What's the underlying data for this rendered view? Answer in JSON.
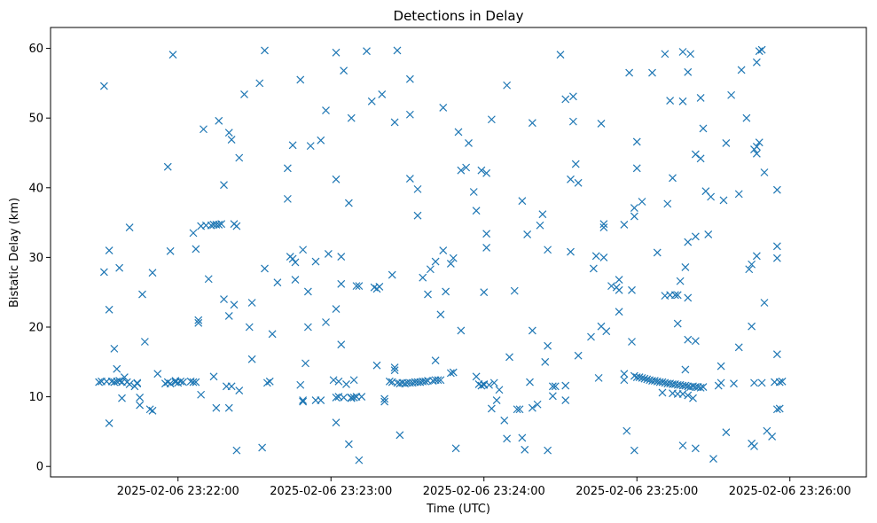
{
  "chart_data": {
    "type": "scatter",
    "title": "Detections in Delay",
    "xlabel": "Time (UTC)",
    "ylabel": "Bistatic Delay (km)",
    "marker": "x",
    "color": "#1f77b4",
    "xlim": [
      "2025-02-06 23:21:10",
      "2025-02-06 23:26:30"
    ],
    "ylim": [
      -1.5,
      63
    ],
    "x_ticks": [
      "2025-02-06 23:22:00",
      "2025-02-06 23:23:00",
      "2025-02-06 23:24:00",
      "2025-02-06 23:25:00",
      "2025-02-06 23:26:00"
    ],
    "y_ticks": [
      0,
      10,
      20,
      30,
      40,
      50,
      60
    ],
    "grid": false,
    "legend": false,
    "points": [
      [
        "23:21:29",
        12.1
      ],
      [
        "23:21:30",
        12.2
      ],
      [
        "23:21:31",
        54.6
      ],
      [
        "23:21:31",
        27.9
      ],
      [
        "23:21:32",
        12.2
      ],
      [
        "23:21:33",
        22.5
      ],
      [
        "23:21:33",
        31.0
      ],
      [
        "23:21:33",
        6.2
      ],
      [
        "23:21:34",
        12.2
      ],
      [
        "23:21:35",
        12.1
      ],
      [
        "23:21:35",
        16.9
      ],
      [
        "23:21:36",
        14.0
      ],
      [
        "23:21:36",
        12.2
      ],
      [
        "23:21:37",
        28.5
      ],
      [
        "23:21:37",
        12.3
      ],
      [
        "23:21:38",
        12.1
      ],
      [
        "23:21:38",
        9.8
      ],
      [
        "23:21:39",
        12.8
      ],
      [
        "23:21:40",
        12.1
      ],
      [
        "23:21:41",
        34.3
      ],
      [
        "23:21:41",
        11.8
      ],
      [
        "23:21:43",
        11.5
      ],
      [
        "23:21:44",
        12.0
      ],
      [
        "23:21:44",
        11.9
      ],
      [
        "23:21:45",
        9.9
      ],
      [
        "23:21:45",
        8.8
      ],
      [
        "23:21:46",
        24.7
      ],
      [
        "23:21:47",
        17.9
      ],
      [
        "23:21:49",
        8.2
      ],
      [
        "23:21:50",
        27.8
      ],
      [
        "23:21:50",
        8.0
      ],
      [
        "23:21:52",
        13.3
      ],
      [
        "23:21:55",
        11.9
      ],
      [
        "23:21:56",
        43.0
      ],
      [
        "23:21:56",
        12.1
      ],
      [
        "23:21:57",
        30.9
      ],
      [
        "23:21:57",
        11.9
      ],
      [
        "23:21:58",
        59.1
      ],
      [
        "23:21:59",
        12.1
      ],
      [
        "23:21:59",
        12.3
      ],
      [
        "23:22:00",
        12.0
      ],
      [
        "23:22:01",
        12.2
      ],
      [
        "23:22:02",
        12.1
      ],
      [
        "23:22:05",
        12.2
      ],
      [
        "23:22:06",
        12.1
      ],
      [
        "23:22:06",
        33.5
      ],
      [
        "23:22:07",
        31.2
      ],
      [
        "23:22:07",
        12.1
      ],
      [
        "23:22:08",
        21.0
      ],
      [
        "23:22:08",
        20.6
      ],
      [
        "23:22:09",
        34.5
      ],
      [
        "23:22:09",
        10.3
      ],
      [
        "23:22:10",
        48.4
      ],
      [
        "23:22:11",
        34.6
      ],
      [
        "23:22:12",
        26.9
      ],
      [
        "23:22:13",
        34.6
      ],
      [
        "23:22:14",
        34.7
      ],
      [
        "23:22:14",
        12.9
      ],
      [
        "23:22:15",
        34.7
      ],
      [
        "23:22:15",
        8.4
      ],
      [
        "23:22:16",
        34.7
      ],
      [
        "23:22:16",
        49.6
      ],
      [
        "23:22:17",
        34.8
      ],
      [
        "23:22:18",
        40.4
      ],
      [
        "23:22:18",
        24.0
      ],
      [
        "23:22:19",
        11.5
      ],
      [
        "23:22:20",
        21.6
      ],
      [
        "23:22:20",
        47.9
      ],
      [
        "23:22:20",
        8.4
      ],
      [
        "23:22:21",
        46.9
      ],
      [
        "23:22:21",
        11.5
      ],
      [
        "23:22:22",
        23.2
      ],
      [
        "23:22:22",
        34.8
      ],
      [
        "23:22:23",
        34.5
      ],
      [
        "23:22:23",
        2.3
      ],
      [
        "23:22:24",
        44.3
      ],
      [
        "23:22:24",
        10.9
      ],
      [
        "23:22:26",
        53.4
      ],
      [
        "23:22:28",
        20.0
      ],
      [
        "23:22:29",
        23.5
      ],
      [
        "23:22:29",
        15.4
      ],
      [
        "23:22:32",
        55.0
      ],
      [
        "23:22:33",
        2.7
      ],
      [
        "23:22:34",
        28.4
      ],
      [
        "23:22:34",
        59.7
      ],
      [
        "23:22:35",
        12.0
      ],
      [
        "23:22:36",
        12.2
      ],
      [
        "23:22:37",
        19.0
      ],
      [
        "23:22:39",
        26.4
      ],
      [
        "23:22:43",
        42.8
      ],
      [
        "23:22:43",
        38.4
      ],
      [
        "23:22:44",
        30.1
      ],
      [
        "23:22:45",
        46.1
      ],
      [
        "23:22:45",
        29.8
      ],
      [
        "23:22:46",
        29.3
      ],
      [
        "23:22:46",
        26.8
      ],
      [
        "23:22:48",
        11.7
      ],
      [
        "23:22:48",
        55.5
      ],
      [
        "23:22:49",
        9.3
      ],
      [
        "23:22:49",
        9.5
      ],
      [
        "23:22:49",
        31.1
      ],
      [
        "23:22:50",
        14.8
      ],
      [
        "23:22:51",
        25.1
      ],
      [
        "23:22:51",
        20.0
      ],
      [
        "23:22:52",
        46.0
      ],
      [
        "23:22:54",
        29.4
      ],
      [
        "23:22:54",
        9.5
      ],
      [
        "23:22:56",
        9.5
      ],
      [
        "23:22:56",
        46.8
      ],
      [
        "23:22:58",
        51.1
      ],
      [
        "23:22:58",
        20.7
      ],
      [
        "23:22:59",
        30.5
      ],
      [
        "23:23:01",
        12.4
      ],
      [
        "23:23:02",
        59.4
      ],
      [
        "23:23:02",
        41.2
      ],
      [
        "23:23:02",
        22.6
      ],
      [
        "23:23:02",
        6.3
      ],
      [
        "23:23:02",
        9.9
      ],
      [
        "23:23:03",
        12.2
      ],
      [
        "23:23:03",
        10.0
      ],
      [
        "23:23:04",
        17.5
      ],
      [
        "23:23:04",
        26.2
      ],
      [
        "23:23:04",
        30.1
      ],
      [
        "23:23:05",
        9.9
      ],
      [
        "23:23:05",
        56.8
      ],
      [
        "23:23:06",
        11.8
      ],
      [
        "23:23:07",
        37.8
      ],
      [
        "23:23:07",
        3.2
      ],
      [
        "23:23:08",
        50.0
      ],
      [
        "23:23:08",
        9.8
      ],
      [
        "23:23:08",
        9.9
      ],
      [
        "23:23:09",
        12.4
      ],
      [
        "23:23:09",
        9.9
      ],
      [
        "23:23:10",
        25.9
      ],
      [
        "23:23:10",
        10.0
      ],
      [
        "23:23:11",
        25.9
      ],
      [
        "23:23:11",
        0.9
      ],
      [
        "23:23:12",
        10.0
      ],
      [
        "23:23:14",
        59.6
      ],
      [
        "23:23:16",
        52.4
      ],
      [
        "23:23:17",
        25.7
      ],
      [
        "23:23:18",
        25.5
      ],
      [
        "23:23:18",
        14.5
      ],
      [
        "23:23:19",
        25.8
      ],
      [
        "23:23:20",
        53.4
      ],
      [
        "23:23:21",
        9.3
      ],
      [
        "23:23:21",
        9.7
      ],
      [
        "23:23:23",
        12.2
      ],
      [
        "23:23:24",
        27.5
      ],
      [
        "23:23:24",
        12.1
      ],
      [
        "23:23:25",
        49.4
      ],
      [
        "23:23:25",
        14.2
      ],
      [
        "23:23:25",
        13.8
      ],
      [
        "23:23:26",
        59.7
      ],
      [
        "23:23:26",
        12.0
      ],
      [
        "23:23:27",
        11.9
      ],
      [
        "23:23:27",
        4.5
      ],
      [
        "23:23:28",
        12.0
      ],
      [
        "23:23:29",
        11.9
      ],
      [
        "23:23:30",
        12.0
      ],
      [
        "23:23:31",
        55.6
      ],
      [
        "23:23:31",
        41.3
      ],
      [
        "23:23:31",
        50.5
      ],
      [
        "23:23:31",
        12.0
      ],
      [
        "23:23:32",
        12.0
      ],
      [
        "23:23:33",
        12.1
      ],
      [
        "23:23:34",
        36.0
      ],
      [
        "23:23:34",
        39.8
      ],
      [
        "23:23:34",
        12.1
      ],
      [
        "23:23:35",
        12.1
      ],
      [
        "23:23:36",
        27.1
      ],
      [
        "23:23:36",
        12.2
      ],
      [
        "23:23:37",
        12.2
      ],
      [
        "23:23:38",
        24.7
      ],
      [
        "23:23:38",
        12.3
      ],
      [
        "23:23:39",
        28.3
      ],
      [
        "23:23:40",
        12.3
      ],
      [
        "23:23:41",
        29.4
      ],
      [
        "23:23:41",
        15.2
      ],
      [
        "23:23:41",
        12.4
      ],
      [
        "23:23:42",
        12.4
      ],
      [
        "23:23:43",
        21.8
      ],
      [
        "23:23:43",
        12.4
      ],
      [
        "23:23:44",
        31.0
      ],
      [
        "23:23:44",
        51.5
      ],
      [
        "23:23:45",
        25.1
      ],
      [
        "23:23:47",
        29.1
      ],
      [
        "23:23:47",
        13.4
      ],
      [
        "23:23:48",
        29.9
      ],
      [
        "23:23:48",
        13.5
      ],
      [
        "23:23:49",
        2.6
      ],
      [
        "23:23:50",
        48.0
      ],
      [
        "23:23:51",
        42.5
      ],
      [
        "23:23:51",
        19.5
      ],
      [
        "23:23:53",
        42.9
      ],
      [
        "23:23:54",
        46.4
      ],
      [
        "23:23:56",
        39.4
      ],
      [
        "23:23:57",
        36.7
      ],
      [
        "23:23:57",
        12.9
      ],
      [
        "23:23:58",
        11.8
      ],
      [
        "23:23:59",
        42.5
      ],
      [
        "23:23:59",
        11.6
      ],
      [
        "23:24:00",
        25.0
      ],
      [
        "23:24:00",
        11.7
      ],
      [
        "23:24:00",
        11.8
      ],
      [
        "23:24:01",
        31.4
      ],
      [
        "23:24:01",
        33.4
      ],
      [
        "23:24:01",
        42.1
      ],
      [
        "23:24:02",
        11.7
      ],
      [
        "23:24:03",
        8.3
      ],
      [
        "23:24:03",
        49.8
      ],
      [
        "23:24:04",
        12.0
      ],
      [
        "23:24:05",
        9.5
      ],
      [
        "23:24:06",
        11.0
      ],
      [
        "23:24:08",
        6.6
      ],
      [
        "23:24:09",
        54.7
      ],
      [
        "23:24:09",
        4.0
      ],
      [
        "23:24:10",
        15.7
      ],
      [
        "23:24:12",
        25.2
      ],
      [
        "23:24:13",
        8.2
      ],
      [
        "23:24:14",
        8.2
      ],
      [
        "23:24:15",
        38.1
      ],
      [
        "23:24:15",
        4.1
      ],
      [
        "23:24:16",
        2.4
      ],
      [
        "23:24:17",
        33.3
      ],
      [
        "23:24:18",
        12.1
      ],
      [
        "23:24:19",
        49.3
      ],
      [
        "23:24:19",
        19.5
      ],
      [
        "23:24:19",
        8.4
      ],
      [
        "23:24:21",
        8.9
      ],
      [
        "23:24:22",
        34.6
      ],
      [
        "23:24:23",
        36.2
      ],
      [
        "23:24:24",
        15.0
      ],
      [
        "23:24:25",
        17.3
      ],
      [
        "23:24:25",
        31.1
      ],
      [
        "23:24:25",
        2.3
      ],
      [
        "23:24:27",
        10.1
      ],
      [
        "23:24:27",
        11.5
      ],
      [
        "23:24:28",
        11.5
      ],
      [
        "23:24:30",
        59.1
      ],
      [
        "23:24:32",
        11.6
      ],
      [
        "23:24:32",
        9.5
      ],
      [
        "23:24:32",
        52.7
      ],
      [
        "23:24:34",
        41.2
      ],
      [
        "23:24:34",
        30.8
      ],
      [
        "23:24:35",
        49.5
      ],
      [
        "23:24:35",
        53.1
      ],
      [
        "23:24:36",
        43.4
      ],
      [
        "23:24:37",
        40.7
      ],
      [
        "23:24:37",
        15.9
      ],
      [
        "23:24:42",
        18.6
      ],
      [
        "23:24:43",
        28.4
      ],
      [
        "23:24:44",
        30.2
      ],
      [
        "23:24:45",
        12.7
      ],
      [
        "23:24:46",
        49.2
      ],
      [
        "23:24:46",
        20.1
      ],
      [
        "23:24:47",
        30.0
      ],
      [
        "23:24:47",
        34.8
      ],
      [
        "23:24:47",
        34.3
      ],
      [
        "23:24:48",
        19.4
      ],
      [
        "23:24:50",
        25.9
      ],
      [
        "23:24:52",
        25.7
      ],
      [
        "23:24:53",
        22.2
      ],
      [
        "23:24:53",
        26.8
      ],
      [
        "23:24:53",
        25.3
      ],
      [
        "23:24:55",
        34.7
      ],
      [
        "23:24:55",
        13.3
      ],
      [
        "23:24:55",
        12.4
      ],
      [
        "23:24:56",
        5.1
      ],
      [
        "23:24:57",
        56.5
      ],
      [
        "23:24:58",
        25.3
      ],
      [
        "23:24:58",
        17.9
      ],
      [
        "23:24:59",
        35.9
      ],
      [
        "23:24:59",
        37.1
      ],
      [
        "23:24:59",
        2.3
      ],
      [
        "23:24:59",
        13.0
      ],
      [
        "23:25:00",
        42.8
      ],
      [
        "23:25:00",
        46.6
      ],
      [
        "23:25:00",
        12.8
      ],
      [
        "23:25:01",
        12.8
      ],
      [
        "23:25:02",
        38.0
      ],
      [
        "23:25:02",
        12.7
      ],
      [
        "23:25:03",
        12.6
      ],
      [
        "23:25:04",
        12.5
      ],
      [
        "23:25:05",
        12.4
      ],
      [
        "23:25:06",
        56.5
      ],
      [
        "23:25:06",
        12.3
      ],
      [
        "23:25:07",
        12.3
      ],
      [
        "23:25:08",
        12.2
      ],
      [
        "23:25:08",
        30.7
      ],
      [
        "23:25:09",
        12.1
      ],
      [
        "23:25:10",
        12.1
      ],
      [
        "23:25:10",
        10.6
      ],
      [
        "23:25:11",
        59.2
      ],
      [
        "23:25:11",
        24.5
      ],
      [
        "23:25:11",
        12.0
      ],
      [
        "23:25:12",
        37.7
      ],
      [
        "23:25:12",
        11.9
      ],
      [
        "23:25:13",
        52.5
      ],
      [
        "23:25:13",
        24.6
      ],
      [
        "23:25:13",
        11.9
      ],
      [
        "23:25:14",
        41.4
      ],
      [
        "23:25:14",
        10.5
      ],
      [
        "23:25:14",
        11.8
      ],
      [
        "23:25:15",
        24.6
      ],
      [
        "23:25:15",
        11.8
      ],
      [
        "23:25:16",
        24.6
      ],
      [
        "23:25:16",
        20.5
      ],
      [
        "23:25:16",
        10.4
      ],
      [
        "23:25:16",
        11.7
      ],
      [
        "23:25:17",
        26.6
      ],
      [
        "23:25:17",
        11.7
      ],
      [
        "23:25:18",
        59.5
      ],
      [
        "23:25:18",
        52.4
      ],
      [
        "23:25:18",
        10.4
      ],
      [
        "23:25:18",
        3.0
      ],
      [
        "23:25:18",
        11.6
      ],
      [
        "23:25:19",
        28.6
      ],
      [
        "23:25:19",
        13.9
      ],
      [
        "23:25:19",
        11.6
      ],
      [
        "23:25:20",
        56.6
      ],
      [
        "23:25:20",
        32.2
      ],
      [
        "23:25:20",
        24.2
      ],
      [
        "23:25:20",
        18.2
      ],
      [
        "23:25:20",
        10.2
      ],
      [
        "23:25:20",
        11.5
      ],
      [
        "23:25:21",
        59.2
      ],
      [
        "23:25:21",
        11.4
      ],
      [
        "23:25:22",
        9.8
      ],
      [
        "23:25:22",
        11.5
      ],
      [
        "23:25:23",
        44.8
      ],
      [
        "23:25:23",
        33.0
      ],
      [
        "23:25:23",
        18.0
      ],
      [
        "23:25:23",
        2.6
      ],
      [
        "23:25:23",
        11.4
      ],
      [
        "23:25:24",
        11.4
      ],
      [
        "23:25:25",
        52.9
      ],
      [
        "23:25:25",
        44.2
      ],
      [
        "23:25:25",
        11.3
      ],
      [
        "23:25:26",
        48.5
      ],
      [
        "23:25:26",
        11.4
      ],
      [
        "23:25:27",
        39.5
      ],
      [
        "23:25:28",
        33.3
      ],
      [
        "23:25:29",
        38.7
      ],
      [
        "23:25:30",
        1.1
      ],
      [
        "23:25:32",
        11.6
      ],
      [
        "23:25:33",
        14.4
      ],
      [
        "23:25:33",
        12.0
      ],
      [
        "23:25:34",
        38.2
      ],
      [
        "23:25:35",
        46.4
      ],
      [
        "23:25:35",
        4.9
      ],
      [
        "23:25:37",
        53.3
      ],
      [
        "23:25:38",
        11.9
      ],
      [
        "23:25:40",
        17.1
      ],
      [
        "23:25:40",
        39.1
      ],
      [
        "23:25:41",
        56.9
      ],
      [
        "23:25:43",
        50.0
      ],
      [
        "23:25:44",
        28.3
      ],
      [
        "23:25:45",
        3.3
      ],
      [
        "23:25:45",
        29.0
      ],
      [
        "23:25:45",
        20.1
      ],
      [
        "23:25:46",
        2.9
      ],
      [
        "23:25:46",
        45.5
      ],
      [
        "23:25:46",
        12.0
      ],
      [
        "23:25:47",
        30.2
      ],
      [
        "23:25:47",
        44.9
      ],
      [
        "23:25:47",
        58.0
      ],
      [
        "23:25:47",
        45.9
      ],
      [
        "23:25:48",
        46.5
      ],
      [
        "23:25:48",
        59.6
      ],
      [
        "23:25:49",
        59.8
      ],
      [
        "23:25:49",
        12.0
      ],
      [
        "23:25:50",
        23.5
      ],
      [
        "23:25:50",
        42.2
      ],
      [
        "23:25:51",
        5.1
      ],
      [
        "23:25:53",
        4.3
      ],
      [
        "23:25:54",
        12.1
      ],
      [
        "23:25:55",
        16.1
      ],
      [
        "23:25:55",
        31.6
      ],
      [
        "23:25:55",
        39.7
      ],
      [
        "23:25:55",
        29.9
      ],
      [
        "23:25:55",
        8.2
      ],
      [
        "23:25:56",
        8.3
      ],
      [
        "23:25:56",
        12.1
      ],
      [
        "23:25:57",
        12.2
      ]
    ]
  }
}
